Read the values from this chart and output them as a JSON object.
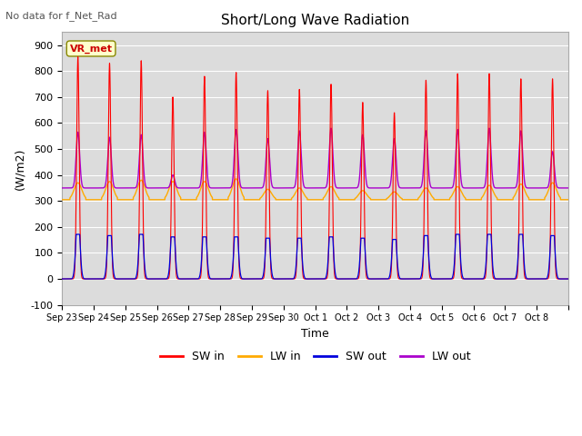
{
  "title": "Short/Long Wave Radiation",
  "subtitle": "No data for f_Net_Rad",
  "xlabel": "Time",
  "ylabel": "(W/m2)",
  "ylim": [
    -100,
    950
  ],
  "yticks": [
    -100,
    0,
    100,
    200,
    300,
    400,
    500,
    600,
    700,
    800,
    900
  ],
  "bg_color": "#dcdcdc",
  "legend_label": "VR_met",
  "series_colors": {
    "SW_in": "#ff0000",
    "LW_in": "#ffaa00",
    "SW_out": "#0000dd",
    "LW_out": "#aa00cc"
  },
  "x_tick_labels": [
    "Sep 23",
    "Sep 24",
    "Sep 25",
    "Sep 26",
    "Sep 27",
    "Sep 28",
    "Sep 29",
    "Sep 30",
    "Oct 1",
    "Oct 2",
    "Oct 3",
    "Oct 4",
    "Oct 5",
    "Oct 6",
    "Oct 7",
    "Oct 8"
  ],
  "n_days": 16,
  "points_per_day": 288,
  "sw_peaks": [
    855,
    830,
    840,
    700,
    780,
    795,
    725,
    730,
    750,
    680,
    640,
    765,
    790,
    790,
    770,
    770
  ],
  "lw_out_peaks": [
    565,
    545,
    555,
    400,
    565,
    575,
    540,
    570,
    580,
    555,
    540,
    570,
    575,
    580,
    570,
    490
  ],
  "lw_in_base": 305,
  "lw_in_peaks": [
    370,
    375,
    380,
    375,
    375,
    385,
    345,
    350,
    355,
    340,
    335,
    350,
    355,
    360,
    365,
    370
  ],
  "sw_out_peaks": [
    175,
    170,
    175,
    165,
    165,
    165,
    160,
    160,
    165,
    160,
    155,
    170,
    175,
    175,
    175,
    170
  ]
}
